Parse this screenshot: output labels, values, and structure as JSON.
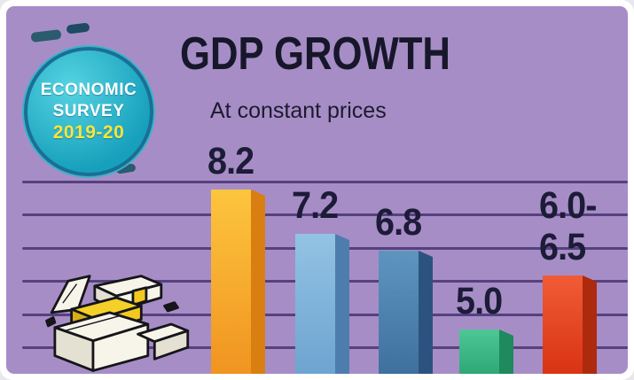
{
  "badge": {
    "line1": "ECONOMIC",
    "line2": "SURVEY",
    "line3": "2019-20"
  },
  "header": {
    "title": "GDP GROWTH",
    "subtitle": "At constant prices"
  },
  "chart_data": {
    "type": "bar",
    "title": "GDP GROWTH",
    "subtitle": "At constant prices",
    "value_labels": [
      "8.2",
      "7.2",
      "6.8",
      "5.0",
      "6.0-6.5"
    ],
    "values": [
      8.2,
      7.2,
      6.8,
      5.0,
      6.25
    ],
    "categories": [
      "",
      "",
      "",
      "",
      ""
    ],
    "ylim": [
      0,
      9
    ],
    "grid": true,
    "legend": false,
    "bars": [
      {
        "label_lines": [
          "8.2"
        ],
        "value": 8.2,
        "color_top": "#fdc53e",
        "color_bottom": "#f09420",
        "color_side": "#d97f12"
      },
      {
        "label_lines": [
          "7.2"
        ],
        "value": 7.2,
        "color_top": "#93c3e4",
        "color_bottom": "#6ea4d0",
        "color_side": "#4d7dad"
      },
      {
        "label_lines": [
          "6.8"
        ],
        "value": 6.8,
        "color_top": "#5e95bf",
        "color_bottom": "#3f709e",
        "color_side": "#2c537f"
      },
      {
        "label_lines": [
          "5.0"
        ],
        "value": 5.0,
        "color_top": "#4cc795",
        "color_bottom": "#2fa877",
        "color_side": "#1e8a5e"
      },
      {
        "label_lines": [
          "6.0-",
          "6.5"
        ],
        "value": 6.25,
        "color_top": "#f05c36",
        "color_bottom": "#d93314",
        "color_side": "#ad2a0f"
      }
    ]
  },
  "colors": {
    "background": "#a78dc6",
    "frame": "#ffffff",
    "gridline": "#55417e",
    "title_text": "#17172b",
    "value_text": "#1c1c38",
    "badge_fill": "#2bb6cc",
    "badge_border": "#1a6f96",
    "badge_text": "#ffffff",
    "badge_year_text": "#f8e53e",
    "money_yellow": "#f3c91f"
  }
}
